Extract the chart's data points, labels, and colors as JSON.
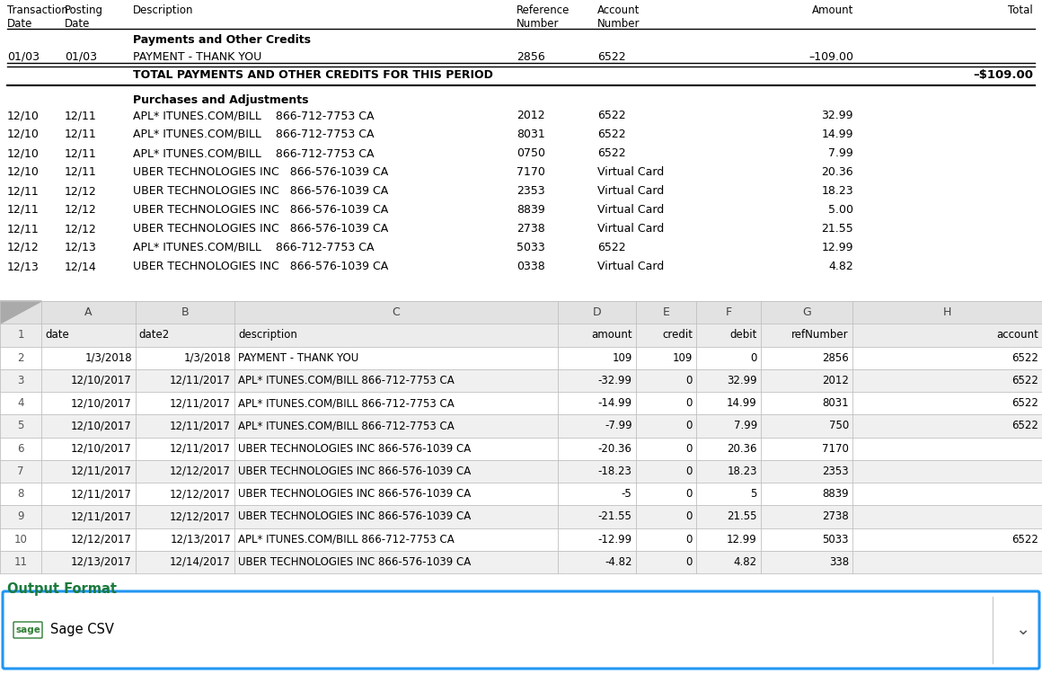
{
  "bg_color": "#ffffff",
  "top_section": {
    "purchase_rows": [
      {
        "td": "12/10",
        "pd": "12/11",
        "desc": "APL* ITUNES.COM/BILL    866-712-7753 CA",
        "ref": "2012",
        "acct": "6522",
        "amt": "32.99"
      },
      {
        "td": "12/10",
        "pd": "12/11",
        "desc": "APL* ITUNES.COM/BILL    866-712-7753 CA",
        "ref": "8031",
        "acct": "6522",
        "amt": "14.99"
      },
      {
        "td": "12/10",
        "pd": "12/11",
        "desc": "APL* ITUNES.COM/BILL    866-712-7753 CA",
        "ref": "0750",
        "acct": "6522",
        "amt": "7.99"
      },
      {
        "td": "12/10",
        "pd": "12/11",
        "desc": "UBER TECHNOLOGIES INC   866-576-1039 CA",
        "ref": "7170",
        "acct": "Virtual Card",
        "amt": "20.36"
      },
      {
        "td": "12/11",
        "pd": "12/12",
        "desc": "UBER TECHNOLOGIES INC   866-576-1039 CA",
        "ref": "2353",
        "acct": "Virtual Card",
        "amt": "18.23"
      },
      {
        "td": "12/11",
        "pd": "12/12",
        "desc": "UBER TECHNOLOGIES INC   866-576-1039 CA",
        "ref": "8839",
        "acct": "Virtual Card",
        "amt": "5.00"
      },
      {
        "td": "12/11",
        "pd": "12/12",
        "desc": "UBER TECHNOLOGIES INC   866-576-1039 CA",
        "ref": "2738",
        "acct": "Virtual Card",
        "amt": "21.55"
      },
      {
        "td": "12/12",
        "pd": "12/13",
        "desc": "APL* ITUNES.COM/BILL    866-712-7753 CA",
        "ref": "5033",
        "acct": "6522",
        "amt": "12.99"
      },
      {
        "td": "12/13",
        "pd": "12/14",
        "desc": "UBER TECHNOLOGIES INC   866-576-1039 CA",
        "ref": "0338",
        "acct": "Virtual Card",
        "amt": "4.82"
      }
    ]
  },
  "spreadsheet": {
    "col_headers": [
      "A",
      "B",
      "C",
      "D",
      "E",
      "F",
      "G",
      "H"
    ],
    "field_headers": [
      "date",
      "date2",
      "description",
      "amount",
      "credit",
      "debit",
      "refNumber",
      "account"
    ],
    "rows": [
      [
        "1/3/2018",
        "1/3/2018",
        "PAYMENT - THANK YOU",
        "109",
        "109",
        "0",
        "2856",
        "6522"
      ],
      [
        "12/10/2017",
        "12/11/2017",
        "APL* ITUNES.COM/BILL 866-712-7753 CA",
        "-32.99",
        "0",
        "32.99",
        "2012",
        "6522"
      ],
      [
        "12/10/2017",
        "12/11/2017",
        "APL* ITUNES.COM/BILL 866-712-7753 CA",
        "-14.99",
        "0",
        "14.99",
        "8031",
        "6522"
      ],
      [
        "12/10/2017",
        "12/11/2017",
        "APL* ITUNES.COM/BILL 866-712-7753 CA",
        "-7.99",
        "0",
        "7.99",
        "750",
        "6522"
      ],
      [
        "12/10/2017",
        "12/11/2017",
        "UBER TECHNOLOGIES INC 866-576-1039 CA",
        "-20.36",
        "0",
        "20.36",
        "7170",
        ""
      ],
      [
        "12/11/2017",
        "12/12/2017",
        "UBER TECHNOLOGIES INC 866-576-1039 CA",
        "-18.23",
        "0",
        "18.23",
        "2353",
        ""
      ],
      [
        "12/11/2017",
        "12/12/2017",
        "UBER TECHNOLOGIES INC 866-576-1039 CA",
        "-5",
        "0",
        "5",
        "8839",
        ""
      ],
      [
        "12/11/2017",
        "12/12/2017",
        "UBER TECHNOLOGIES INC 866-576-1039 CA",
        "-21.55",
        "0",
        "21.55",
        "2738",
        ""
      ],
      [
        "12/12/2017",
        "12/13/2017",
        "APL* ITUNES.COM/BILL 866-712-7753 CA",
        "-12.99",
        "0",
        "12.99",
        "5033",
        "6522"
      ],
      [
        "12/13/2017",
        "12/14/2017",
        "UBER TECHNOLOGIES INC 866-576-1039 CA",
        "-4.82",
        "0",
        "4.82",
        "338",
        ""
      ]
    ],
    "header_bg": "#e2e2e2",
    "row_bg_alt": "#f0f0f0",
    "row_bg_main": "#ffffff",
    "grid_color": "#c0c0c0",
    "header_col_bg": "#c8c8c8",
    "col_bounds": [
      0.0,
      0.04,
      0.13,
      0.225,
      0.535,
      0.61,
      0.668,
      0.73,
      0.818,
      1.0
    ]
  },
  "output_format": {
    "label": "Output Format",
    "label_color": "#1a7a3c",
    "sage_text": "Sage CSV",
    "sage_color": "#2e7d32",
    "sage_label": "sage",
    "box_border_color": "#2196F3",
    "box_bg": "#ffffff"
  }
}
